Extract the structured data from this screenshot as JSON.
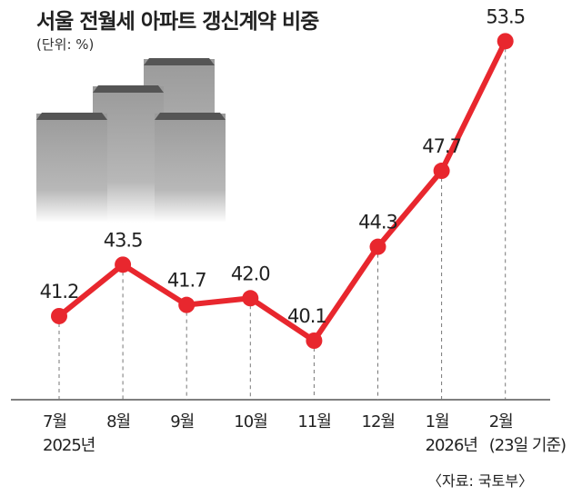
{
  "chart_data": {
    "type": "line",
    "title": "서울 전월세 아파트 갱신계약 비중",
    "subtitle": "(단위: %)",
    "categories": [
      "7월",
      "8월",
      "9월",
      "10월",
      "11월",
      "12월",
      "1월",
      "2월"
    ],
    "category_sublabels": [
      "2025년",
      "",
      "",
      "",
      "",
      "",
      "2026년",
      "(23일 기준)"
    ],
    "values": [
      41.2,
      43.5,
      41.7,
      42.0,
      40.1,
      44.3,
      47.7,
      53.5
    ],
    "value_labels": [
      "41.2",
      "43.5",
      "41.7",
      "42.0",
      "40.1",
      "44.3",
      "47.7",
      "53.5"
    ],
    "source": "〈자료: 국토부〉",
    "line_color": "#e8272e",
    "grid": false,
    "legend": "none"
  }
}
